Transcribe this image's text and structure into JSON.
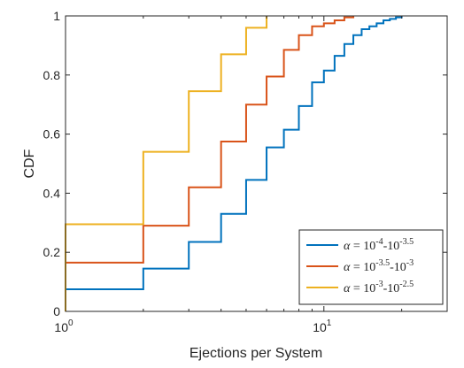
{
  "chart_data": {
    "type": "line",
    "title": "",
    "xlabel": "Ejections per System",
    "ylabel": "CDF",
    "xscale": "log",
    "xlim": [
      1,
      30
    ],
    "ylim": [
      0,
      1
    ],
    "grid": false,
    "legend_position": "bottom-right",
    "x_ticks": [
      {
        "value": 1,
        "base": "10",
        "exp": "0"
      },
      {
        "value": 10,
        "base": "10",
        "exp": "1"
      }
    ],
    "y_ticks": [
      {
        "value": 0,
        "label": "0"
      },
      {
        "value": 0.2,
        "label": "0.2"
      },
      {
        "value": 0.4,
        "label": "0.4"
      },
      {
        "value": 0.6,
        "label": "0.6"
      },
      {
        "value": 0.8,
        "label": "0.8"
      },
      {
        "value": 1,
        "label": "1"
      }
    ],
    "series": [
      {
        "legend": {
          "alpha": "α",
          "eq": " = 10",
          "exp1": "-4",
          "mid": "-10",
          "exp2": "-3.5"
        },
        "color": "#0072BD",
        "x": [
          1,
          2,
          3,
          4,
          5,
          6,
          7,
          8,
          9,
          10,
          11,
          12,
          13,
          14,
          15,
          16,
          17,
          18,
          19,
          20
        ],
        "y": [
          0.075,
          0.145,
          0.235,
          0.33,
          0.445,
          0.555,
          0.615,
          0.695,
          0.775,
          0.815,
          0.865,
          0.905,
          0.935,
          0.955,
          0.965,
          0.975,
          0.985,
          0.99,
          0.995,
          1.0
        ]
      },
      {
        "legend": {
          "alpha": "α",
          "eq": " = 10",
          "exp1": "-3.5",
          "mid": "-10",
          "exp2": "-3"
        },
        "color": "#D95319",
        "x": [
          1,
          2,
          3,
          4,
          5,
          6,
          7,
          8,
          9,
          10,
          11,
          12,
          13
        ],
        "y": [
          0.165,
          0.29,
          0.42,
          0.575,
          0.7,
          0.795,
          0.885,
          0.935,
          0.965,
          0.975,
          0.985,
          0.995,
          1.0
        ]
      },
      {
        "legend": {
          "alpha": "α",
          "eq": " = 10",
          "exp1": "-3",
          "mid": "-10",
          "exp2": "-2.5"
        },
        "color": "#EDB120",
        "x": [
          1,
          2,
          3,
          4,
          5,
          6
        ],
        "y": [
          0.295,
          0.54,
          0.745,
          0.87,
          0.96,
          1.0
        ]
      }
    ]
  }
}
